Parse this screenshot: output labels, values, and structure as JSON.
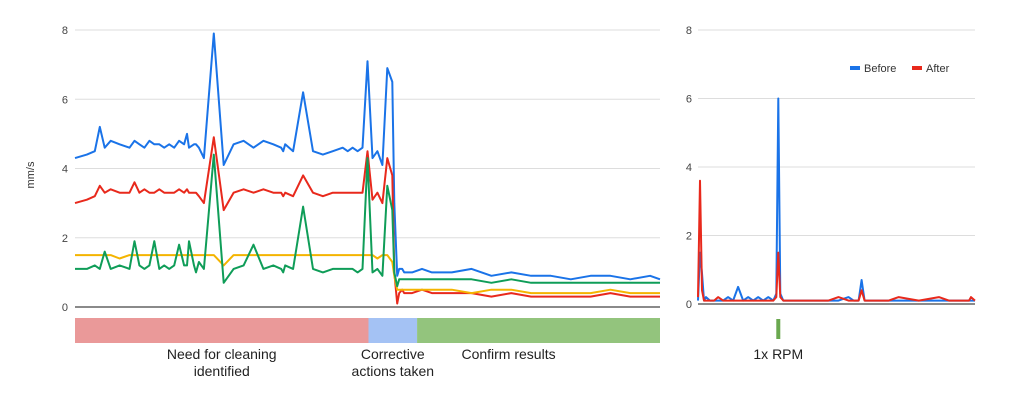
{
  "chart_data": [
    {
      "type": "line",
      "title": "",
      "ylabel": "mm/s",
      "ylim": [
        0,
        8
      ],
      "yticks": [
        "0",
        "2",
        "4",
        "6",
        "8"
      ],
      "grid": true,
      "x": [
        0,
        12,
        20,
        25,
        30,
        36,
        45,
        55,
        60,
        65,
        70,
        75,
        80,
        85,
        90,
        95,
        100,
        105,
        110,
        113,
        115,
        120,
        122,
        125,
        130,
        140,
        150,
        160,
        170,
        180,
        190,
        200,
        208,
        210,
        212,
        220,
        230,
        240,
        250,
        260,
        270,
        275,
        280,
        285,
        290,
        295,
        300,
        305,
        310,
        315,
        320,
        322,
        325,
        327,
        330,
        332,
        335,
        340,
        350,
        360,
        380,
        400,
        420,
        440,
        460,
        480,
        500,
        520,
        540,
        560,
        580,
        590
      ],
      "series": [
        {
          "name": "",
          "color": "#1a73e8",
          "values": [
            4.3,
            4.4,
            4.5,
            5.2,
            4.6,
            4.8,
            4.7,
            4.6,
            4.8,
            4.7,
            4.6,
            4.8,
            4.7,
            4.7,
            4.6,
            4.7,
            4.6,
            4.8,
            4.7,
            5.0,
            4.6,
            4.7,
            4.7,
            4.6,
            4.3,
            7.9,
            4.1,
            4.7,
            4.8,
            4.6,
            4.8,
            4.7,
            4.6,
            4.5,
            4.7,
            4.5,
            6.2,
            4.5,
            4.4,
            4.5,
            4.6,
            4.5,
            4.6,
            4.5,
            4.6,
            7.1,
            4.3,
            4.5,
            4.1,
            6.9,
            6.5,
            3.0,
            0.9,
            1.1,
            1.1,
            1.0,
            1.0,
            1.0,
            1.1,
            1.0,
            1.0,
            1.1,
            0.9,
            1.0,
            0.9,
            0.9,
            0.8,
            0.9,
            0.9,
            0.8,
            0.9,
            0.8
          ]
        },
        {
          "name": "",
          "color": "#e8291c",
          "values": [
            3.0,
            3.1,
            3.2,
            3.5,
            3.3,
            3.4,
            3.3,
            3.3,
            3.6,
            3.3,
            3.4,
            3.3,
            3.3,
            3.4,
            3.3,
            3.3,
            3.3,
            3.4,
            3.3,
            3.4,
            3.3,
            3.3,
            3.3,
            3.2,
            3.0,
            4.9,
            2.8,
            3.3,
            3.4,
            3.3,
            3.4,
            3.3,
            3.3,
            3.2,
            3.3,
            3.2,
            3.8,
            3.3,
            3.2,
            3.3,
            3.3,
            3.3,
            3.3,
            3.3,
            3.3,
            4.5,
            3.1,
            3.3,
            3.0,
            4.3,
            3.8,
            1.0,
            0.1,
            0.4,
            0.5,
            0.4,
            0.4,
            0.4,
            0.5,
            0.4,
            0.4,
            0.4,
            0.3,
            0.4,
            0.3,
            0.3,
            0.3,
            0.3,
            0.4,
            0.3,
            0.3,
            0.3
          ]
        },
        {
          "name": "",
          "color": "#f4b400",
          "values": [
            1.5,
            1.5,
            1.5,
            1.5,
            1.5,
            1.5,
            1.4,
            1.5,
            1.5,
            1.5,
            1.5,
            1.5,
            1.5,
            1.5,
            1.5,
            1.5,
            1.5,
            1.5,
            1.5,
            1.5,
            1.5,
            1.5,
            1.5,
            1.5,
            1.5,
            1.5,
            1.2,
            1.5,
            1.5,
            1.5,
            1.5,
            1.5,
            1.5,
            1.5,
            1.5,
            1.5,
            1.5,
            1.5,
            1.5,
            1.5,
            1.5,
            1.5,
            1.5,
            1.5,
            1.5,
            1.5,
            1.5,
            1.4,
            1.5,
            1.5,
            1.3,
            0.9,
            0.5,
            0.5,
            0.5,
            0.5,
            0.5,
            0.5,
            0.5,
            0.5,
            0.5,
            0.4,
            0.5,
            0.5,
            0.4,
            0.4,
            0.4,
            0.4,
            0.5,
            0.4,
            0.4,
            0.4
          ]
        },
        {
          "name": "",
          "color": "#0f9d58",
          "values": [
            1.1,
            1.1,
            1.2,
            1.1,
            1.6,
            1.1,
            1.2,
            1.1,
            1.9,
            1.2,
            1.1,
            1.2,
            1.9,
            1.1,
            1.2,
            1.1,
            1.2,
            1.8,
            1.2,
            1.2,
            1.9,
            1.2,
            1.0,
            1.3,
            1.1,
            4.4,
            0.7,
            1.1,
            1.2,
            1.8,
            1.1,
            1.2,
            1.1,
            1.0,
            1.2,
            1.1,
            2.9,
            1.1,
            1.0,
            1.1,
            1.1,
            1.1,
            1.1,
            1.0,
            1.1,
            4.3,
            1.0,
            1.1,
            0.9,
            3.5,
            2.8,
            1.0,
            0.6,
            0.8,
            0.8,
            0.8,
            0.8,
            0.8,
            0.8,
            0.8,
            0.8,
            0.8,
            0.7,
            0.8,
            0.7,
            0.7,
            0.7,
            0.7,
            0.7,
            0.7,
            0.7,
            0.7
          ]
        }
      ],
      "phases": [
        {
          "label_lines": [
            "Need for cleaning",
            "identified"
          ],
          "color": "#ea9999",
          "start": 0,
          "end": 296
        },
        {
          "label_lines": [
            "Corrective",
            "actions taken"
          ],
          "color": "#a4c2f4",
          "start": 296,
          "end": 345
        },
        {
          "label_lines": [
            "Confirm results"
          ],
          "color": "#93c47d",
          "start": 345,
          "end": 590
        }
      ]
    },
    {
      "type": "line",
      "title": "",
      "ylim": [
        0,
        8
      ],
      "yticks": [
        "0",
        "2",
        "4",
        "6",
        "8"
      ],
      "grid": true,
      "legend_position": "top-right",
      "x": [
        0,
        2,
        4,
        6,
        8,
        12,
        16,
        20,
        25,
        30,
        35,
        40,
        45,
        50,
        55,
        60,
        65,
        70,
        75,
        78,
        80,
        82,
        85,
        90,
        95,
        100,
        110,
        120,
        130,
        140,
        150,
        155,
        160,
        163,
        166,
        170,
        180,
        190,
        200,
        220,
        240,
        250,
        260,
        270,
        272,
        276
      ],
      "series": [
        {
          "name": "Before",
          "color": "#1a73e8",
          "values": [
            0.1,
            1.5,
            0.9,
            0.1,
            0.2,
            0.1,
            0.1,
            0.1,
            0.1,
            0.2,
            0.1,
            0.5,
            0.1,
            0.2,
            0.1,
            0.2,
            0.1,
            0.2,
            0.1,
            0.3,
            6.0,
            0.3,
            0.1,
            0.1,
            0.1,
            0.1,
            0.1,
            0.1,
            0.1,
            0.1,
            0.2,
            0.1,
            0.1,
            0.7,
            0.1,
            0.1,
            0.1,
            0.1,
            0.1,
            0.1,
            0.1,
            0.1,
            0.1,
            0.1,
            0.1,
            0.1
          ]
        },
        {
          "name": "After",
          "color": "#e8291c",
          "values": [
            0.2,
            3.6,
            0.4,
            0.1,
            0.1,
            0.1,
            0.1,
            0.2,
            0.1,
            0.1,
            0.1,
            0.1,
            0.1,
            0.1,
            0.1,
            0.1,
            0.1,
            0.1,
            0.1,
            0.2,
            1.5,
            0.2,
            0.1,
            0.1,
            0.1,
            0.1,
            0.1,
            0.1,
            0.1,
            0.2,
            0.1,
            0.1,
            0.1,
            0.4,
            0.1,
            0.1,
            0.1,
            0.1,
            0.2,
            0.1,
            0.2,
            0.1,
            0.1,
            0.1,
            0.2,
            0.1
          ]
        }
      ],
      "marker": {
        "label": "1x RPM",
        "x": 80,
        "color": "#6aa84f"
      }
    }
  ]
}
